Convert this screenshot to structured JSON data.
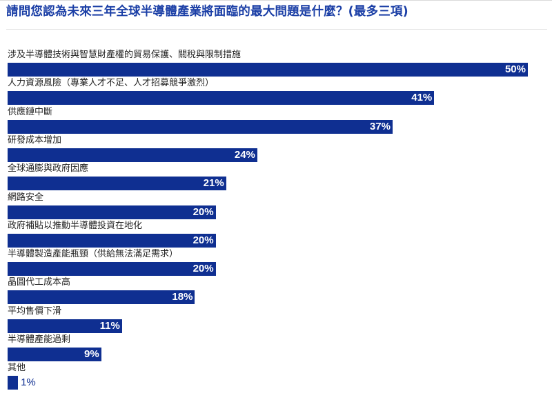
{
  "chart_data": {
    "type": "bar",
    "orientation": "horizontal",
    "title": "請問您認為未來三年全球半導體產業將面臨的最大問題是什麼？(最多三項)",
    "categories": [
      "涉及半導體技術與智慧財產權的貿易保護、關稅與限制措施",
      "人力資源風險（專業人才不足、人才招募競爭激烈）",
      "供應鏈中斷",
      "研發成本增加",
      "全球通膨與政府因應",
      "網路安全",
      "政府補貼以推動半導體投資在地化",
      "半導體製造產能瓶頸（供給無法滿足需求）",
      "晶圓代工成本高",
      "平均售價下滑",
      "半導體產能過剩",
      "其他"
    ],
    "values": [
      50,
      41,
      37,
      24,
      21,
      20,
      20,
      20,
      18,
      11,
      9,
      1
    ],
    "value_labels": [
      "50%",
      "41%",
      "37%",
      "24%",
      "21%",
      "20%",
      "20%",
      "20%",
      "18%",
      "11%",
      "9%",
      "1%"
    ],
    "unit": "%",
    "xlim": [
      0,
      50
    ],
    "bar_color": "#0f2f91",
    "title_color": "#1b3fa6",
    "grid": false,
    "legend": "none"
  }
}
